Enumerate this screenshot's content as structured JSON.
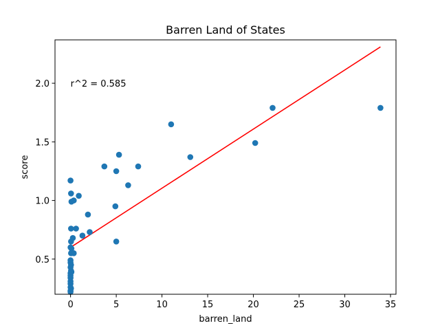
{
  "chart_data": {
    "type": "scatter",
    "title": "Barren Land of States",
    "xlabel": "barren_land",
    "ylabel": "score",
    "xlim": [
      -1.7,
      35.6
    ],
    "ylim": [
      0.2,
      2.37
    ],
    "xticks": [
      0,
      5,
      10,
      15,
      20,
      25,
      30,
      35
    ],
    "yticks": [
      0.5,
      1.0,
      1.5,
      2.0
    ],
    "grid": false,
    "annotation": {
      "text": "r^2 = 0.585",
      "x": 0,
      "y": 2.0
    },
    "colors": {
      "points": "#1f77b4",
      "fit_line": "#ff0000"
    },
    "series": [
      {
        "kind": "points",
        "points": [
          [
            0.0,
            1.17
          ],
          [
            0.05,
            1.06
          ],
          [
            0.1,
            0.99
          ],
          [
            0.35,
            1.0
          ],
          [
            0.9,
            1.04
          ],
          [
            0.05,
            0.76
          ],
          [
            0.6,
            0.76
          ],
          [
            1.3,
            0.7
          ],
          [
            1.9,
            0.88
          ],
          [
            2.1,
            0.73
          ],
          [
            0.25,
            0.68
          ],
          [
            0.05,
            0.65
          ],
          [
            0.0,
            0.6
          ],
          [
            0.1,
            0.59
          ],
          [
            0.05,
            0.55
          ],
          [
            0.35,
            0.55
          ],
          [
            0.0,
            0.49
          ],
          [
            0.0,
            0.47
          ],
          [
            0.05,
            0.45
          ],
          [
            0.0,
            0.43
          ],
          [
            0.05,
            0.4
          ],
          [
            0.0,
            0.38
          ],
          [
            0.1,
            0.39
          ],
          [
            0.0,
            0.36
          ],
          [
            0.0,
            0.34
          ],
          [
            0.0,
            0.31
          ],
          [
            0.0,
            0.29
          ],
          [
            0.0,
            0.26
          ],
          [
            0.05,
            0.25
          ],
          [
            0.0,
            0.23
          ],
          [
            0.0,
            0.22
          ],
          [
            3.7,
            1.29
          ],
          [
            5.0,
            1.25
          ],
          [
            5.3,
            1.39
          ],
          [
            6.3,
            1.13
          ],
          [
            7.4,
            1.29
          ],
          [
            4.9,
            0.95
          ],
          [
            5.0,
            0.65
          ],
          [
            11.0,
            1.65
          ],
          [
            13.1,
            1.37
          ],
          [
            20.2,
            1.49
          ],
          [
            22.1,
            1.79
          ],
          [
            33.9,
            1.79
          ]
        ]
      },
      {
        "kind": "fit_line",
        "points": [
          [
            0,
            0.6
          ],
          [
            33.9,
            2.31
          ]
        ]
      }
    ]
  }
}
